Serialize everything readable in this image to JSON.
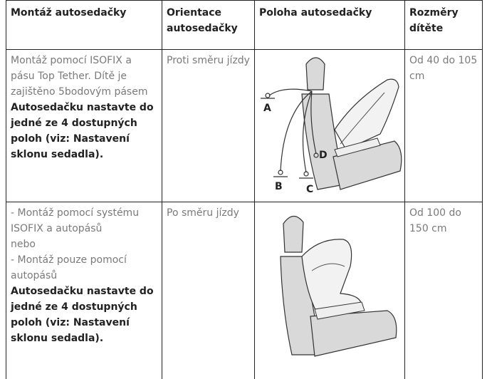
{
  "table": {
    "header": [
      "Montáž autosedačky",
      "Orientace autosedačky",
      "Poloha autosedačky",
      "Rozměry dítěte"
    ],
    "rows": [
      {
        "mounting": [
          "Montáž pomocí ISOFIX a pásu Top Tether. Dítě je zajištěno 5bodovým pásem"
        ],
        "mounting_note": "Autosedačku nastavte do jedné ze 4 dostupných poloh (viz: Nastavení sklonu sedadla).",
        "orientation": "Proti směru jízdy",
        "figure_labels": [
          "A",
          "B",
          "C",
          "D"
        ],
        "size": "Od 40 do 105 cm"
      },
      {
        "mounting": [
          "- Montáž pomocí systému ISOFIX a autopásů",
          "nebo",
          "- Montáž pouze pomocí autopásů"
        ],
        "mounting_note": "Autosedačku nastavte do jedné ze 4 dostupných poloh (viz: Nastavení sklonu sedadla).",
        "orientation": "Po směru jízdy",
        "size": "Od 100 do 150 cm"
      }
    ]
  }
}
